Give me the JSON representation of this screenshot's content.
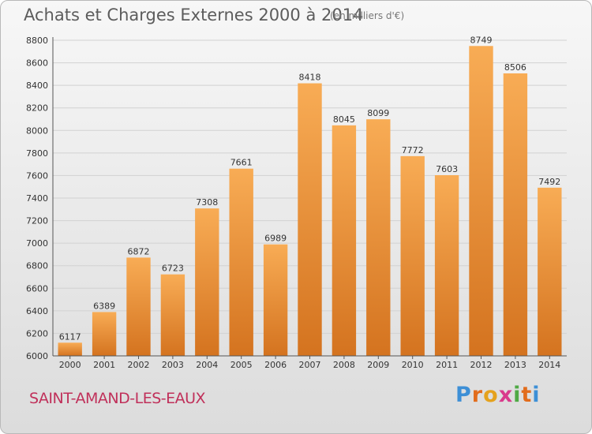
{
  "title": "Achats et Charges Externes 2000 à 2014",
  "subtitle": "(en milliers d'€)",
  "commune": "SAINT-AMAND-LES-EAUX",
  "logo": {
    "letters": [
      "P",
      "r",
      "o",
      "x",
      "i",
      "t",
      "i"
    ],
    "colors": [
      "#3d8fd6",
      "#e26c1c",
      "#e5a21d",
      "#d93a8c",
      "#4fa945",
      "#e26c1c",
      "#3d8fd6"
    ]
  },
  "colors": {
    "bar_top": "#f8ac55",
    "bar_bottom": "#d4731f",
    "axis": "#555555",
    "grid": "#d2d2d2",
    "label": "#333333"
  },
  "chart_data": {
    "type": "bar",
    "categories": [
      "2000",
      "2001",
      "2002",
      "2003",
      "2004",
      "2005",
      "2006",
      "2007",
      "2008",
      "2009",
      "2010",
      "2011",
      "2012",
      "2013",
      "2014"
    ],
    "values": [
      6117,
      6389,
      6872,
      6723,
      7308,
      7661,
      6989,
      8418,
      8045,
      8099,
      7772,
      7603,
      8749,
      8506,
      7492
    ],
    "yticks": [
      6000,
      6200,
      6400,
      6600,
      6800,
      7000,
      7200,
      7400,
      7600,
      7800,
      8000,
      8200,
      8400,
      8600,
      8800
    ],
    "ylim": [
      6000,
      8800
    ],
    "grid": true,
    "legend": false
  }
}
